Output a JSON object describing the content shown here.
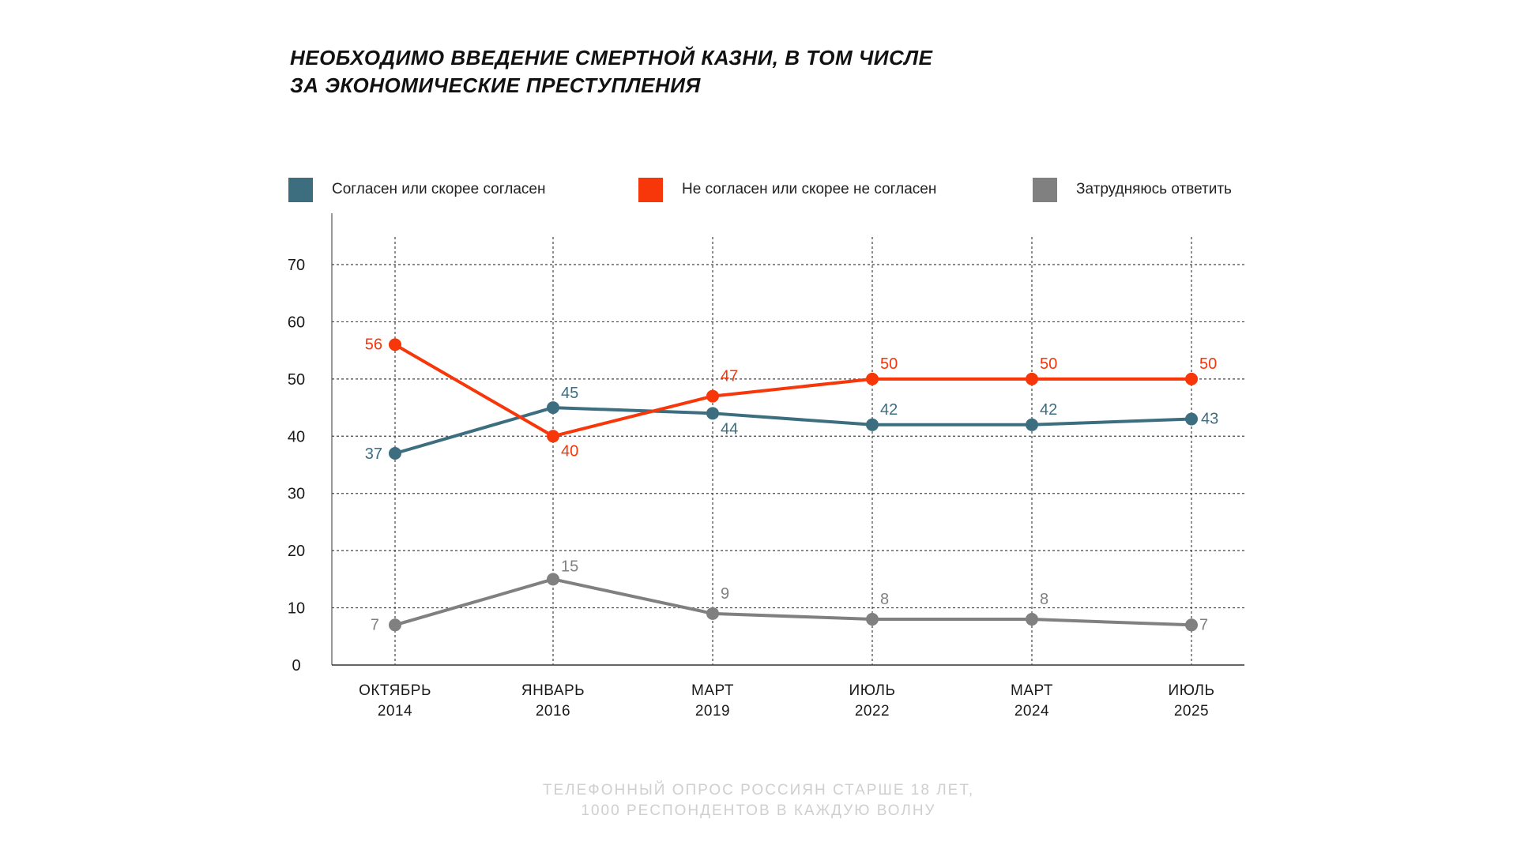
{
  "title_lines": [
    "НЕОБХОДИМО ВВЕДЕНИЕ СМЕРТНОЙ КАЗНИ, В ТОМ ЧИСЛЕ",
    "ЗА ЭКОНОМИЧЕСКИЕ ПРЕСТУПЛЕНИЯ"
  ],
  "source_lines": [
    "ТЕЛЕФОННЫЙ ОПРОС РОССИЯН СТАРШЕ 18 ЛЕТ,",
    "1000 РЕСПОНДЕНТОВ В КАЖДУЮ ВОЛНУ"
  ],
  "chart_data": {
    "type": "line",
    "title": "НЕОБХОДИМО ВВЕДЕНИЕ СМЕРТНОЙ КАЗНИ, В ТОМ ЧИСЛЕ ЗА ЭКОНОМИЧЕСКИЕ ПРЕСТУПЛЕНИЯ",
    "categories": [
      [
        "ОКТЯБРЬ",
        "2014"
      ],
      [
        "ЯНВАРЬ",
        "2016"
      ],
      [
        "МАРТ",
        "2019"
      ],
      [
        "ИЮЛЬ",
        "2022"
      ],
      [
        "МАРТ",
        "2024"
      ],
      [
        "ИЮЛЬ",
        "2025"
      ]
    ],
    "ylim": [
      0,
      70
    ],
    "yticks": [
      0,
      10,
      20,
      30,
      40,
      50,
      60,
      70
    ],
    "grid": true,
    "legend_position": "top",
    "series": [
      {
        "name": "Согласен или скорее согласен",
        "color": "#3c6e80",
        "values": [
          37,
          45,
          44,
          42,
          42,
          43
        ]
      },
      {
        "name": "Не согласен или скорее не согласен",
        "color": "#f7360a",
        "values": [
          56,
          40,
          47,
          50,
          50,
          50
        ]
      },
      {
        "name": "Затрудняюсь ответить",
        "color": "#808080",
        "values": [
          7,
          15,
          9,
          8,
          8,
          7
        ]
      }
    ]
  }
}
